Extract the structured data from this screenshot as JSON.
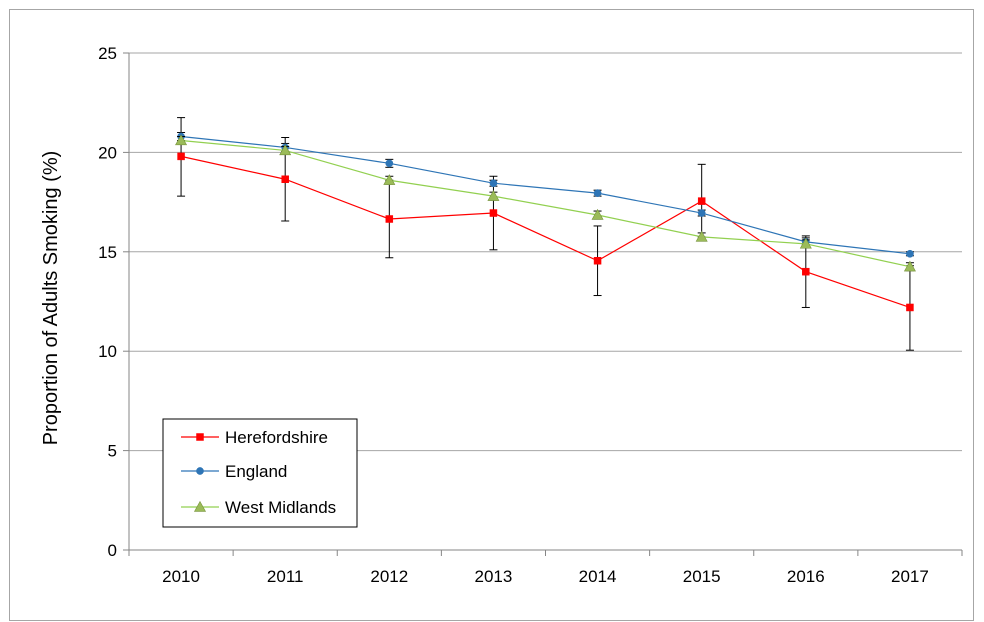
{
  "chart_data": {
    "type": "line",
    "title": "",
    "xlabel": "",
    "ylabel": "Proportion of Adults Smoking (%)",
    "ylim": [
      0,
      25
    ],
    "yticks": [
      0,
      5,
      10,
      15,
      20,
      25
    ],
    "categories": [
      "2010",
      "2011",
      "2012",
      "2013",
      "2014",
      "2015",
      "2016",
      "2017"
    ],
    "grid": "horizontal",
    "legend_position": "bottom-left",
    "series": [
      {
        "name": "Herefordshire",
        "color": "#ff0000",
        "marker": "square",
        "values": [
          19.8,
          18.65,
          16.65,
          16.95,
          14.55,
          17.55,
          14.0,
          12.2
        ],
        "error_low": [
          17.8,
          16.55,
          14.7,
          15.1,
          12.8,
          15.75,
          12.2,
          10.05
        ],
        "error_high": [
          21.75,
          20.75,
          18.6,
          18.8,
          16.3,
          19.4,
          15.8,
          14.3
        ]
      },
      {
        "name": "England",
        "color": "#2e75b6",
        "marker": "circle",
        "values": [
          20.8,
          20.25,
          19.45,
          18.45,
          17.95,
          16.95,
          15.5,
          14.9
        ],
        "error_low": [
          20.6,
          20.05,
          19.25,
          18.3,
          17.8,
          16.8,
          15.35,
          14.8
        ],
        "error_high": [
          21.0,
          20.45,
          19.65,
          18.6,
          18.1,
          17.1,
          15.7,
          15.0
        ]
      },
      {
        "name": "West Midlands",
        "color": "#92d050",
        "marker_fill": "#9bbb59",
        "marker": "triangle",
        "values": [
          20.6,
          20.1,
          18.6,
          17.8,
          16.85,
          15.75,
          15.4,
          14.25
        ],
        "error_low": [
          20.4,
          19.9,
          18.4,
          17.6,
          16.65,
          15.55,
          15.2,
          14.05
        ],
        "error_high": [
          20.8,
          20.3,
          18.8,
          18.0,
          17.05,
          15.95,
          15.6,
          14.45
        ]
      }
    ]
  }
}
